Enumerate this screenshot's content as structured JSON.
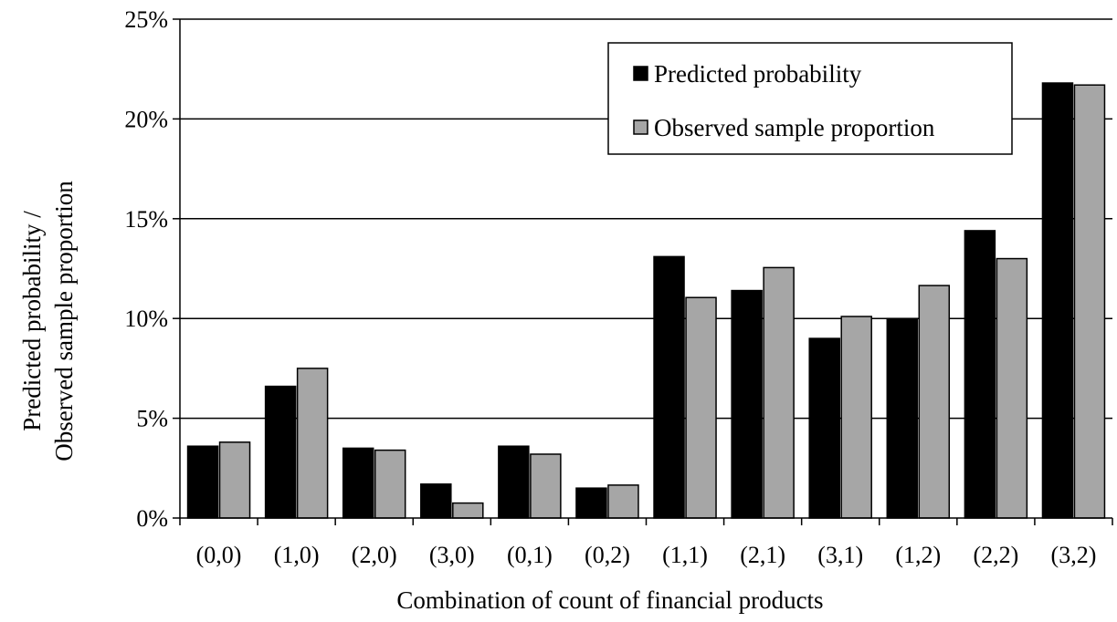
{
  "chart_data": {
    "type": "bar",
    "title": "",
    "xlabel": "Combination of count of financial products",
    "ylabel_lines": [
      "Predicted probability /",
      "Observed sample proportion"
    ],
    "categories": [
      "(0,0)",
      "(1,0)",
      "(2,0)",
      "(3,0)",
      "(0,1)",
      "(0,2)",
      "(1,1)",
      "(2,1)",
      "(3,1)",
      "(1,2)",
      "(2,2)",
      "(3,2)"
    ],
    "series": [
      {
        "name": "Predicted probability",
        "color": "#000000",
        "values": [
          3.6,
          6.6,
          3.5,
          1.7,
          3.6,
          1.5,
          13.1,
          11.4,
          9.0,
          10.0,
          14.4,
          21.8
        ]
      },
      {
        "name": "Observed sample proportion",
        "color": "#a6a6a6",
        "values": [
          3.8,
          7.5,
          3.4,
          0.75,
          3.2,
          1.65,
          11.05,
          12.55,
          10.1,
          11.65,
          13.0,
          21.7
        ]
      }
    ],
    "ylim": [
      0,
      25
    ],
    "yticks": [
      0,
      5,
      10,
      15,
      20,
      25
    ],
    "ytick_labels": [
      "0%",
      "5%",
      "10%",
      "15%",
      "20%",
      "25%"
    ],
    "grid": true,
    "legend_position": "top-right"
  }
}
